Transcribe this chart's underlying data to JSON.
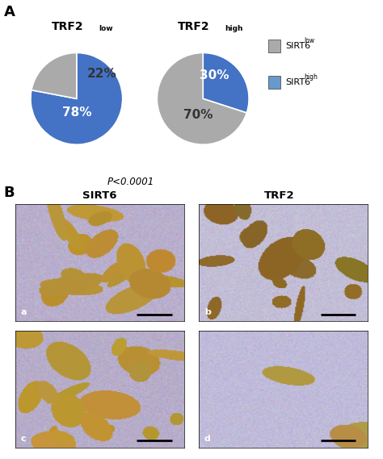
{
  "panel_A_label": "A",
  "panel_B_label": "B",
  "pie1_values": [
    78,
    22
  ],
  "pie2_values": [
    30,
    70
  ],
  "pie1_colors": [
    "#4472C4",
    "#AAAAAA"
  ],
  "pie2_colors": [
    "#4472C4",
    "#AAAAAA"
  ],
  "pie1_labels": [
    "78%",
    "22%"
  ],
  "pie2_labels": [
    "30%",
    "70%"
  ],
  "pie1_label_colors": [
    "white",
    "#333333"
  ],
  "pie2_label_colors": [
    "white",
    "#333333"
  ],
  "legend_colors_box": [
    "#AAAAAA",
    "#6699CC"
  ],
  "pvalue_text": "P<0.0001",
  "col_labels_B": [
    "SIRT6",
    "TRF2"
  ],
  "panel_letters": [
    "a",
    "b",
    "c",
    "d"
  ],
  "bg_color": "#FFFFFF",
  "text_color": "#000000",
  "pie_fontsize": 11,
  "title_fontsize": 10,
  "label_fontsize": 9,
  "legend_fontsize": 8
}
